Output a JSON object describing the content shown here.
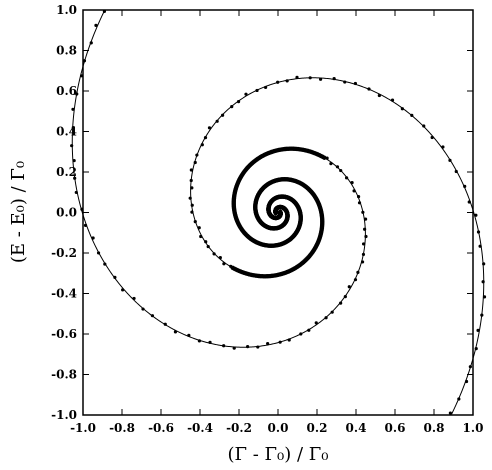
{
  "chart_data": {
    "type": "scatter",
    "title": "",
    "xlabel": "(Γ - Γ₀) / Γ₀",
    "ylabel": "(E - E₀) / Γ₀",
    "xlim": [
      -1.0,
      1.0
    ],
    "ylim": [
      -1.0,
      1.0
    ],
    "xticks": [
      "-1.0",
      "-0.8",
      "-0.6",
      "-0.4",
      "-0.2",
      "0.0",
      "0.2",
      "0.4",
      "0.6",
      "0.8",
      "1.0"
    ],
    "yticks": [
      "1.0",
      "0.8",
      "0.6",
      "0.4",
      "0.2",
      "0.0",
      "-0.2",
      "-0.4",
      "-0.6",
      "-0.8",
      "-1.0"
    ],
    "grid": false,
    "legend": "none",
    "series": [
      {
        "kind": "line",
        "description_points": [
          [
            -0.93,
            1.0
          ],
          [
            -0.88,
            0.85
          ],
          [
            -0.82,
            0.65
          ],
          [
            -0.74,
            0.45
          ],
          [
            -0.62,
            0.2
          ],
          [
            -0.48,
            -0.02
          ],
          [
            -0.32,
            -0.2
          ],
          [
            -0.15,
            -0.32
          ],
          [
            -0.05,
            -0.33
          ],
          [
            0.05,
            -0.28
          ],
          [
            0.12,
            -0.18
          ],
          [
            0.15,
            -0.05
          ],
          [
            0.12,
            0.06
          ],
          [
            0.04,
            0.12
          ],
          [
            -0.04,
            0.1
          ],
          [
            -0.08,
            0.02
          ],
          [
            -0.06,
            -0.06
          ],
          [
            0.0,
            -0.09
          ],
          [
            0.06,
            -0.07
          ],
          [
            0.09,
            0.0
          ],
          [
            0.07,
            0.06
          ],
          [
            0.02,
            0.09
          ],
          [
            -0.02,
            0.08
          ],
          [
            -0.04,
            0.03
          ],
          [
            -0.03,
            -0.02
          ],
          [
            0.0,
            -0.04
          ],
          [
            0.03,
            -0.03
          ],
          [
            0.05,
            0.0
          ],
          [
            0.08,
            -0.1
          ],
          [
            0.14,
            -0.14
          ],
          [
            0.25,
            -0.14
          ],
          [
            0.15,
            0.22
          ],
          [
            -0.05,
            0.33
          ],
          [
            -0.18,
            0.28
          ],
          [
            -0.22,
            0.1
          ]
        ]
      },
      {
        "kind": "scatter",
        "description_points": [
          [
            -0.89,
            0.85
          ],
          [
            -0.86,
            0.75
          ],
          [
            -0.84,
            0.62
          ],
          [
            -0.83,
            0.6
          ],
          [
            -0.82,
            0.58
          ],
          [
            -0.79,
            0.52
          ],
          [
            -0.76,
            0.47
          ],
          [
            -0.72,
            0.4
          ],
          [
            -0.66,
            0.3
          ],
          [
            -0.62,
            0.22
          ],
          [
            -0.57,
            0.13
          ],
          [
            -0.53,
            0.06
          ],
          [
            -0.47,
            -0.02
          ],
          [
            -0.4,
            -0.09
          ],
          [
            -0.34,
            -0.16
          ],
          [
            -0.25,
            -0.24
          ],
          [
            -0.18,
            -0.28
          ],
          [
            0.35,
            0.3
          ],
          [
            0.45,
            0.25
          ],
          [
            0.52,
            0.18
          ],
          [
            0.58,
            0.1
          ],
          [
            0.62,
            0.02
          ],
          [
            0.66,
            -0.05
          ],
          [
            0.7,
            -0.12
          ],
          [
            0.74,
            -0.22
          ],
          [
            0.77,
            -0.32
          ],
          [
            0.8,
            -0.42
          ],
          [
            0.83,
            -0.52
          ],
          [
            0.85,
            -0.62
          ],
          [
            0.86,
            -0.72
          ],
          [
            0.88,
            -0.78
          ],
          [
            0.9,
            -0.86
          ]
        ]
      }
    ]
  }
}
